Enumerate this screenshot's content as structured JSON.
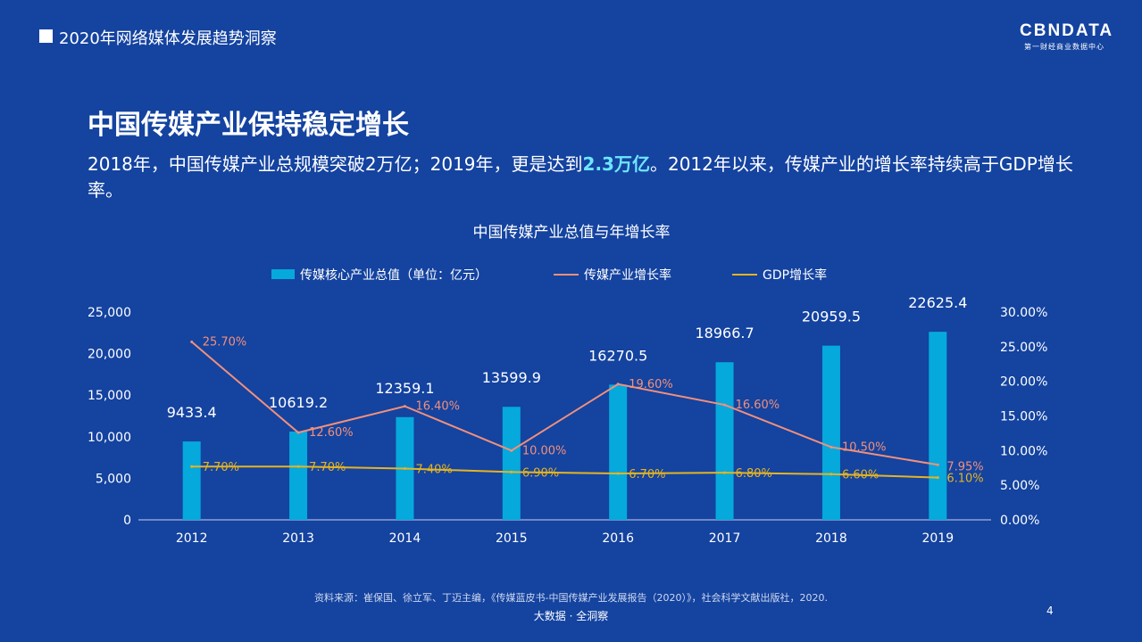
{
  "header": {
    "title": "2020年网络媒体发展趋势洞察"
  },
  "logo": {
    "main": "CBNDATA",
    "sub": "第一财经商业数据中心"
  },
  "slide": {
    "title": "中国传媒产业保持稳定增长",
    "subtitle_part1": "2018年，中国传媒产业总规模突破2万亿；2019年，更是达到",
    "subtitle_highlight": "2.3万亿",
    "subtitle_part2": "。2012年以来，传媒产业的增长率持续高于GDP增长率。"
  },
  "colors": {
    "bar": "#06a9dc",
    "media_line": "#f2907a",
    "gdp_line": "#e5b421",
    "background": "#1443a0"
  },
  "chart_data": {
    "type": "bar",
    "title": "中国传媒产业总值与年增长率",
    "categories": [
      "2012",
      "2013",
      "2014",
      "2015",
      "2016",
      "2017",
      "2018",
      "2019"
    ],
    "series": [
      {
        "name": "传媒核心产业总值（单位：亿元）",
        "type": "bar",
        "axis": "left",
        "values": [
          9433.4,
          10619.2,
          12359.1,
          13599.9,
          16270.5,
          18966.7,
          20959.5,
          22625.4
        ],
        "labels": [
          "9433.4",
          "10619.2",
          "12359.1",
          "13599.9",
          "16270.5",
          "18966.7",
          "20959.5",
          "22625.4"
        ]
      },
      {
        "name": "传媒产业增长率",
        "type": "line",
        "axis": "right",
        "values": [
          25.7,
          12.6,
          16.4,
          10.0,
          19.6,
          16.6,
          10.5,
          7.95
        ],
        "labels": [
          "25.70%",
          "12.60%",
          "16.40%",
          "10.00%",
          "19.60%",
          "16.60%",
          "10.50%",
          "7.95%"
        ]
      },
      {
        "name": "GDP增长率",
        "type": "line",
        "axis": "right",
        "values": [
          7.7,
          7.7,
          7.4,
          6.9,
          6.7,
          6.8,
          6.6,
          6.1
        ],
        "labels": [
          "7.70%",
          "7.70%",
          "7.40%",
          "6.90%",
          "6.70%",
          "6.80%",
          "6.60%",
          "6.10%"
        ]
      }
    ],
    "y_left": {
      "min": 0,
      "max": 25000,
      "ticks": [
        "0",
        "5,000",
        "10,000",
        "15,000",
        "20,000",
        "25,000"
      ]
    },
    "y_right": {
      "min": 0,
      "max": 30,
      "ticks": [
        "0.00%",
        "5.00%",
        "10.00%",
        "15.00%",
        "20.00%",
        "25.00%",
        "30.00%"
      ]
    },
    "grid": false,
    "legend_position": "top"
  },
  "footer": {
    "source": "资料来源：崔保国、徐立军、丁迈主编，《传媒蓝皮书-中国传媒产业发展报告（2020）》，社会科学文献出版社，2020.",
    "brand": "大数据 · 全洞察",
    "page_number": "4"
  }
}
